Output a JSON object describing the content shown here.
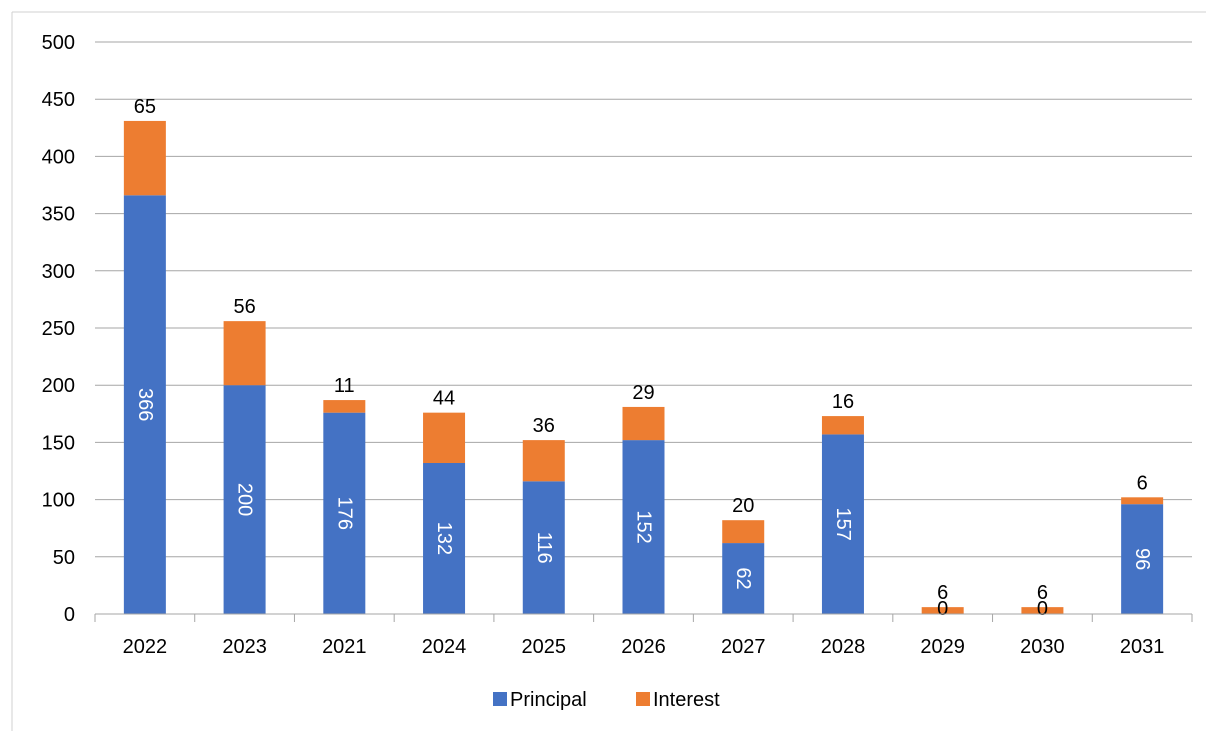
{
  "chart_data": {
    "type": "bar",
    "stacked": true,
    "categories": [
      "2022",
      "2023",
      "2021",
      "2024",
      "2025",
      "2026",
      "2027",
      "2028",
      "2029",
      "2030",
      "2031"
    ],
    "series": [
      {
        "name": "Principal",
        "values": [
          366,
          200,
          176,
          132,
          116,
          152,
          62,
          157,
          0,
          0,
          96
        ],
        "color": "#4472C4"
      },
      {
        "name": "Interest",
        "values": [
          65,
          56,
          11,
          44,
          36,
          29,
          20,
          16,
          6,
          6,
          6
        ],
        "color": "#ED7D31"
      }
    ],
    "title": "",
    "xlabel": "",
    "ylabel": "",
    "ylim": [
      0,
      500
    ],
    "yticks": [
      "0",
      "50",
      "100",
      "150",
      "200",
      "250",
      "300",
      "350",
      "400",
      "450",
      "500"
    ],
    "grid": true,
    "legend": "bottom"
  }
}
